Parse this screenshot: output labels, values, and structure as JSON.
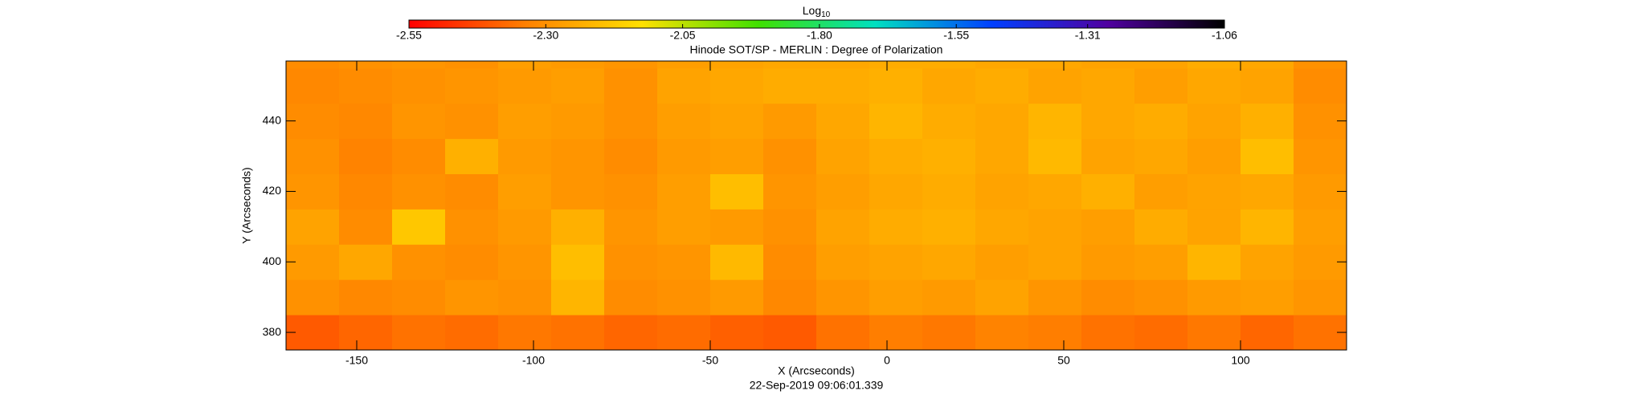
{
  "chart_data": {
    "type": "heatmap",
    "title": "Hinode SOT/SP - MERLIN : Degree of Polarization",
    "xlabel": "X (Arcseconds)",
    "ylabel": "Y (Arcseconds)",
    "footer": "22-Sep-2019 09:06:01.339",
    "colorbar_label": "Log",
    "colorbar_label_sub": "10",
    "clim": [
      -2.55,
      -1.06
    ],
    "cticks": [
      -2.55,
      {
        "value": -2.3,
        "label": "-2.30"
      },
      -2.05,
      {
        "value": -1.8,
        "label": "-1.80"
      },
      -1.55,
      -1.31,
      -1.06
    ],
    "colormap": [
      "#ff0000",
      "#ff8000",
      "#ffe000",
      "#40e000",
      "#00e0c0",
      "#0040ff",
      "#5000a0",
      "#000000"
    ],
    "xlim": [
      -170,
      130
    ],
    "ylim": [
      375,
      457
    ],
    "xticks": [
      -150,
      -100,
      -50,
      0,
      50,
      100
    ],
    "yticks": [
      380,
      400,
      420,
      440
    ],
    "x": [
      -162.5,
      -147.5,
      -132.5,
      -117.5,
      -102.5,
      -87.5,
      -72.5,
      -57.5,
      -42.5,
      -27.5,
      -12.5,
      2.5,
      17.5,
      32.5,
      47.5,
      62.5,
      77.5,
      92.5,
      107.5,
      122.5
    ],
    "y": [
      380,
      390,
      400,
      410,
      420,
      430,
      440,
      450,
      460
    ],
    "z": [
      [
        -2.4,
        -2.38,
        -2.36,
        -2.37,
        -2.35,
        -2.36,
        -2.38,
        -2.37,
        -2.39,
        -2.4,
        -2.36,
        -2.34,
        -2.35,
        -2.33,
        -2.34,
        -2.36,
        -2.37,
        -2.35,
        -2.38,
        -2.36
      ],
      [
        -2.3,
        -2.32,
        -2.31,
        -2.29,
        -2.3,
        -2.22,
        -2.31,
        -2.3,
        -2.28,
        -2.32,
        -2.29,
        -2.27,
        -2.28,
        -2.26,
        -2.29,
        -2.31,
        -2.3,
        -2.28,
        -2.27,
        -2.29
      ],
      [
        -2.28,
        -2.25,
        -2.3,
        -2.31,
        -2.29,
        -2.2,
        -2.3,
        -2.29,
        -2.21,
        -2.31,
        -2.27,
        -2.26,
        -2.25,
        -2.27,
        -2.26,
        -2.28,
        -2.27,
        -2.22,
        -2.26,
        -2.28
      ],
      [
        -2.26,
        -2.31,
        -2.18,
        -2.3,
        -2.28,
        -2.23,
        -2.29,
        -2.27,
        -2.28,
        -2.3,
        -2.26,
        -2.24,
        -2.23,
        -2.25,
        -2.26,
        -2.27,
        -2.24,
        -2.26,
        -2.22,
        -2.27
      ],
      [
        -2.29,
        -2.32,
        -2.3,
        -2.31,
        -2.27,
        -2.29,
        -2.3,
        -2.27,
        -2.2,
        -2.29,
        -2.27,
        -2.25,
        -2.24,
        -2.26,
        -2.25,
        -2.23,
        -2.27,
        -2.26,
        -2.25,
        -2.28
      ],
      [
        -2.3,
        -2.33,
        -2.31,
        -2.23,
        -2.28,
        -2.29,
        -2.31,
        -2.28,
        -2.27,
        -2.3,
        -2.26,
        -2.24,
        -2.23,
        -2.25,
        -2.21,
        -2.26,
        -2.25,
        -2.27,
        -2.2,
        -2.29
      ],
      [
        -2.31,
        -2.32,
        -2.29,
        -2.3,
        -2.27,
        -2.28,
        -2.3,
        -2.27,
        -2.26,
        -2.28,
        -2.25,
        -2.22,
        -2.24,
        -2.25,
        -2.22,
        -2.25,
        -2.24,
        -2.26,
        -2.23,
        -2.3
      ],
      [
        -2.32,
        -2.31,
        -2.3,
        -2.29,
        -2.28,
        -2.27,
        -2.3,
        -2.26,
        -2.25,
        -2.24,
        -2.24,
        -2.23,
        -2.25,
        -2.24,
        -2.26,
        -2.25,
        -2.27,
        -2.25,
        -2.26,
        -2.31
      ],
      [
        -2.31,
        -2.3,
        -2.29,
        -2.3,
        -2.27,
        -2.28,
        -2.29,
        -2.27,
        -2.26,
        -2.25,
        -2.25,
        -2.24,
        -2.24,
        -2.25,
        -2.25,
        -2.26,
        -2.26,
        -2.24,
        -2.25,
        -2.3
      ]
    ]
  }
}
